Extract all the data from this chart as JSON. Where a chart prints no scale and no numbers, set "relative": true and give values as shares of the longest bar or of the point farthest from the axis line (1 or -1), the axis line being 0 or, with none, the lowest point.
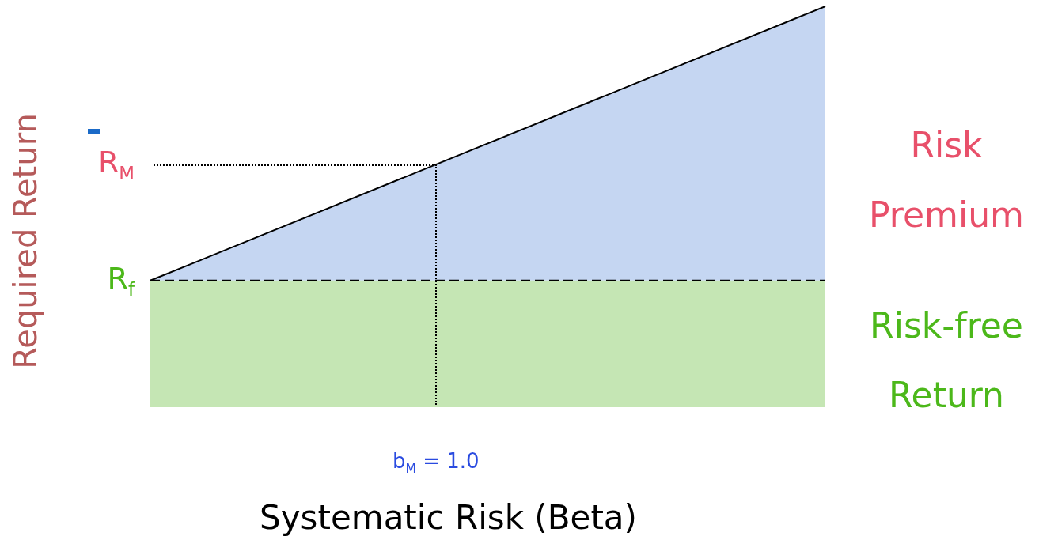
{
  "chart_data": {
    "type": "area",
    "relative": true,
    "xlabel": "Systematic Risk (Beta)",
    "ylabel": "Required Return",
    "categories": [
      null,
      null
    ],
    "series": [
      {
        "name": "Risk-free Return",
        "color": "#c5e6b4",
        "line_style": "dashed",
        "values": [
          0.316,
          0.316
        ]
      },
      {
        "name": "Risk Premium",
        "color": "#c5d6f2",
        "line_style": "solid",
        "values": [
          0.316,
          1
        ]
      }
    ],
    "annotations": [
      "R$_{M}$",
      "R$_{f}$",
      "b$_{M}$ = 1.0"
    ],
    "legend": false
  }
}
